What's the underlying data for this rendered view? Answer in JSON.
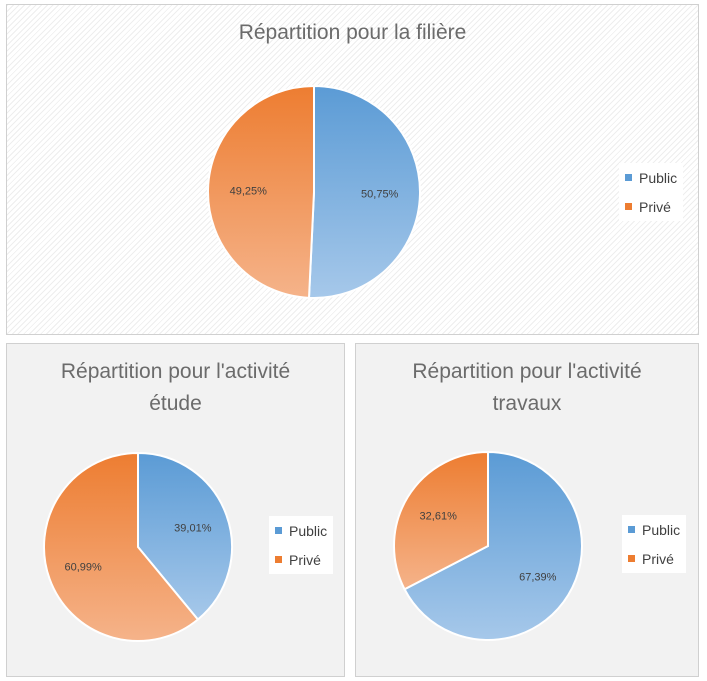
{
  "colors": {
    "public": "#5b9bd5",
    "public_light": "#a6c8ea",
    "prive": "#ed7d31",
    "prive_light": "#f5b38a"
  },
  "legend": {
    "public": "Public",
    "prive": "Privé"
  },
  "chart_data": [
    {
      "type": "pie",
      "title": "Répartition pour la filière",
      "categories": [
        "Public",
        "Privé"
      ],
      "values": [
        50.75,
        49.25
      ],
      "data_labels": [
        "50,75%",
        "49,25%"
      ],
      "legend_position": "right"
    },
    {
      "type": "pie",
      "title": "Répartition pour l'activité étude",
      "categories": [
        "Public",
        "Privé"
      ],
      "values": [
        39.01,
        60.99
      ],
      "data_labels": [
        "39,01%",
        "60,99%"
      ],
      "legend_position": "right"
    },
    {
      "type": "pie",
      "title": "Répartition pour l'activité travaux",
      "categories": [
        "Public",
        "Privé"
      ],
      "values": [
        67.39,
        32.61
      ],
      "data_labels": [
        "67,39%",
        "32,61%"
      ],
      "legend_position": "right"
    }
  ]
}
